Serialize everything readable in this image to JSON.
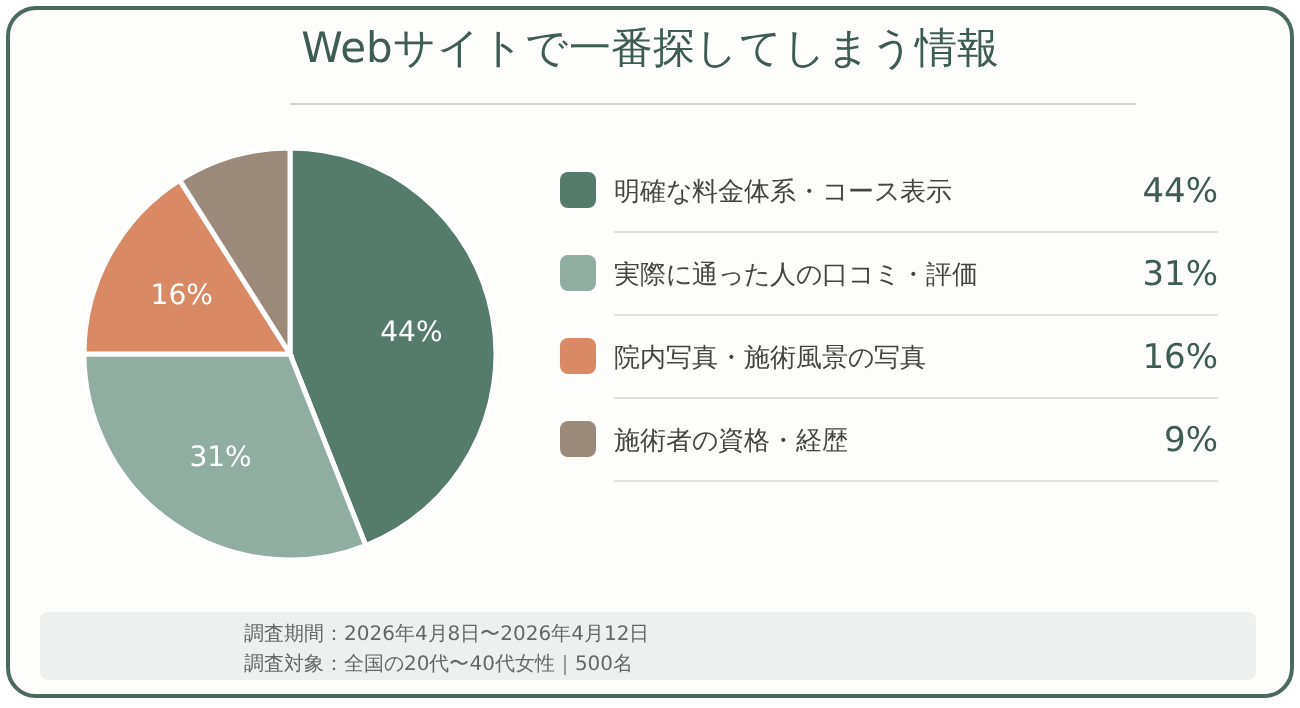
{
  "chart_data": {
    "type": "pie",
    "title": "Webサイトで一番探してしまう情報",
    "categories": [
      "明確な料金体系・コース表示",
      "実際に通った人の口コミ・評価",
      "院内写真・施術風景の写真",
      "施術者の資格・経歴"
    ],
    "values": [
      44,
      31,
      16,
      9
    ],
    "colors": [
      "#557b6b",
      "#8fada0",
      "#d98a64",
      "#9b8a7a"
    ],
    "value_labels": [
      "44%",
      "31%",
      "16%",
      "9%"
    ],
    "legend": "right",
    "annotations": [
      "調査期間：2026年4月8日〜2026年4月12日",
      "調査対象：全国の20代〜40代女性｜500名"
    ]
  }
}
